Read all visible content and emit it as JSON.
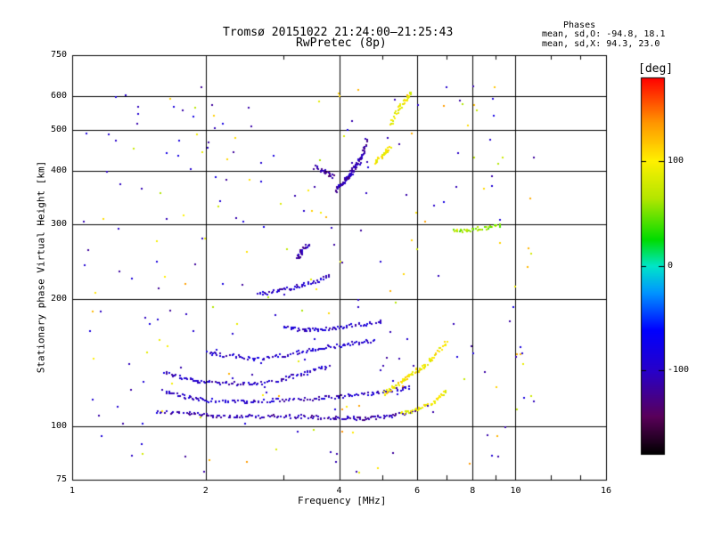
{
  "header": {
    "title_line1": "Tromsø 20151022 21:24:00–21:25:43",
    "title_line2": "RwPretec (8p)",
    "phases_title": "Phases",
    "phases_line_o": "mean, sd,O:  -94.8, 18.1",
    "phases_line_x": "mean, sd,X:  94.3, 23.0"
  },
  "colorbar": {
    "unit_label": "[deg]",
    "ticks": [
      "100",
      "0",
      "-100"
    ],
    "tick_values": [
      100,
      0,
      -100
    ],
    "range": [
      -180,
      180
    ]
  },
  "chart_data": {
    "type": "scatter",
    "title": "Tromsø 20151022 21:24:00–21:25:43",
    "subtitle": "RwPretec (8p)",
    "xlabel": "Frequency [MHz]",
    "ylabel": "Stationary phase Virtual Height [km]",
    "x_scale": "log",
    "y_scale": "log",
    "xlim": [
      1,
      16
    ],
    "ylim": [
      75,
      750
    ],
    "x_ticks": [
      1,
      2,
      4,
      6,
      8,
      10,
      16
    ],
    "x_tick_labels": [
      "1",
      "2",
      "4",
      "6",
      "8",
      "10",
      "16"
    ],
    "y_ticks": [
      75,
      100,
      200,
      300,
      400,
      500,
      600,
      750
    ],
    "y_tick_labels": [
      "75",
      "100",
      "200",
      "300",
      "400",
      "500",
      "600",
      "750"
    ],
    "grid": true,
    "color_encoding": "phase (deg)",
    "traces": [
      {
        "name": "",
        "x": [
          1.55,
          1.8,
          2.0,
          2.3,
          2.6,
          3.0,
          3.4,
          3.8,
          4.2,
          4.6,
          5.0,
          5.5,
          6.0
        ],
        "y": [
          109,
          108,
          107,
          106,
          106,
          106,
          106,
          105,
          105,
          105,
          106,
          108,
          110
        ],
        "phase": -110
      },
      {
        "name": "",
        "x": [
          1.6,
          1.8,
          2.0,
          2.3,
          2.6,
          3.0,
          3.5,
          4.0,
          4.6,
          5.2,
          5.8
        ],
        "y": [
          122,
          118,
          116,
          115,
          115,
          116,
          117,
          118,
          120,
          122,
          125
        ],
        "phase": -100
      },
      {
        "name": "",
        "x": [
          1.6,
          1.8,
          2.0,
          2.3,
          2.6,
          3.0,
          3.4,
          3.8
        ],
        "y": [
          135,
          130,
          128,
          127,
          127,
          130,
          135,
          140
        ],
        "phase": -100
      },
      {
        "name": "",
        "x": [
          2.0,
          2.3,
          2.6,
          3.0,
          3.4,
          3.8,
          4.3,
          4.8
        ],
        "y": [
          150,
          147,
          145,
          148,
          152,
          155,
          158,
          160
        ],
        "phase": -95
      },
      {
        "name": "",
        "x": [
          3.0,
          3.3,
          3.6,
          4.0,
          4.5,
          5.0
        ],
        "y": [
          172,
          170,
          170,
          172,
          175,
          178
        ],
        "phase": -95
      },
      {
        "name": "",
        "x": [
          2.6,
          2.9,
          3.2,
          3.5,
          3.8
        ],
        "y": [
          205,
          210,
          215,
          220,
          228
        ],
        "phase": -100
      },
      {
        "name": "",
        "x": [
          3.2,
          3.3,
          3.4
        ],
        "y": [
          250,
          262,
          270
        ],
        "phase": -110
      },
      {
        "name": "",
        "x": [
          3.9,
          4.0,
          4.1,
          4.2,
          4.3,
          4.4,
          4.5,
          4.6
        ],
        "y": [
          360,
          370,
          380,
          392,
          405,
          420,
          440,
          480
        ],
        "phase": -110
      },
      {
        "name": "",
        "x": [
          3.5,
          3.7,
          3.9
        ],
        "y": [
          410,
          400,
          390
        ],
        "phase": -120
      },
      {
        "name": "",
        "x": [
          5.2,
          5.4,
          5.6,
          5.8
        ],
        "y": [
          520,
          560,
          590,
          620
        ],
        "phase": 90
      },
      {
        "name": "",
        "x": [
          4.8,
          5.0,
          5.2
        ],
        "y": [
          420,
          440,
          460
        ],
        "phase": 100
      },
      {
        "name": "",
        "x": [
          5.0,
          5.3,
          5.6,
          5.9,
          6.2,
          6.6,
          7.0
        ],
        "y": [
          120,
          125,
          130,
          135,
          140,
          150,
          160
        ],
        "phase": 100
      },
      {
        "name": "",
        "x": [
          5.5,
          6.0,
          6.5,
          7.0
        ],
        "y": [
          108,
          110,
          115,
          122
        ],
        "phase": 95
      },
      {
        "name": "",
        "x": [
          7.2,
          7.8,
          8.5,
          9.3
        ],
        "y": [
          290,
          292,
          295,
          300
        ],
        "phase": 60
      }
    ]
  }
}
